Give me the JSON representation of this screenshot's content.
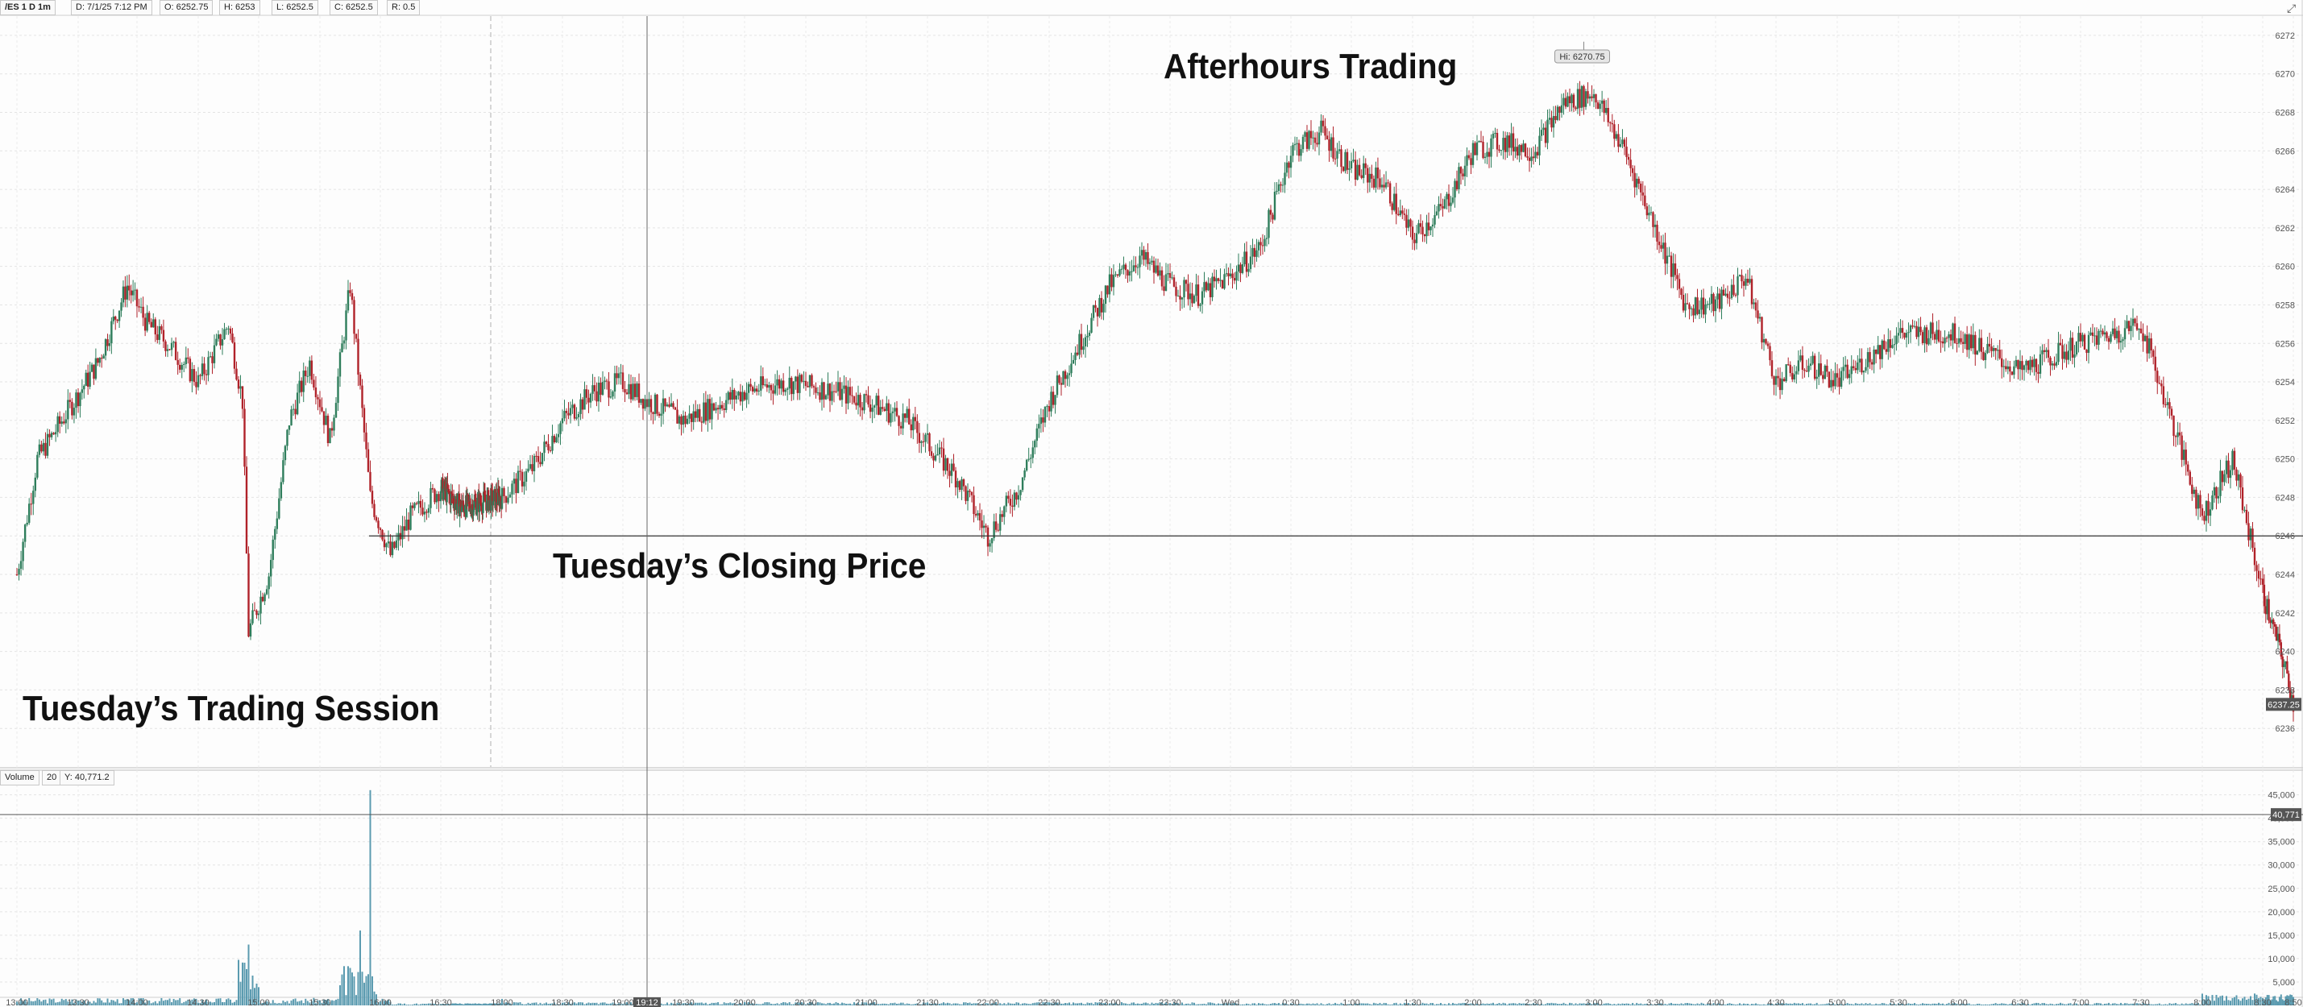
{
  "header": {
    "symbol": "/ES 1 D 1m",
    "date": "D: 7/1/25 7:12 PM",
    "open": "O: 6252.75",
    "high": "H: 6253",
    "low": "L: 6252.5",
    "close": "C: 6252.5",
    "range": "R: 0.5"
  },
  "volume_header": {
    "label": "Volume",
    "period": "20",
    "value": "Y: 40,771.2"
  },
  "annotations": {
    "afterhours": "Afterhours Trading",
    "closing": "Tuesday’s Closing Price",
    "session": "Tuesday’s Trading Session"
  },
  "hi_label": "Hi: 6270.75",
  "last_price_label": "6237.25",
  "volume_marker_label": "40,771",
  "cursor_time_label": "19:12",
  "corner_icon": "chart-expand-icon",
  "colors": {
    "up": "#2e7d5b",
    "down": "#b0222a",
    "volume": "#5b9bb0",
    "grid": "#e4e4e4"
  },
  "chart_data": {
    "type": "candlestick",
    "price_axis": {
      "ylim": [
        6234,
        6273
      ],
      "ticks": [
        6236,
        6238,
        6240,
        6242,
        6244,
        6246,
        6248,
        6250,
        6252,
        6254,
        6256,
        6258,
        6260,
        6262,
        6264,
        6266,
        6268,
        6270,
        6272
      ],
      "reference_line": 6246,
      "last_price": 6237.25,
      "session_high": 6270.75
    },
    "time_axis": {
      "labels": [
        "13:00",
        "13:30",
        "14:00",
        "14:30",
        "15:00",
        "15:30",
        "16:00",
        "16:30",
        "17:00",
        "18:00",
        "18:30",
        "19:00",
        "19:30",
        "20:00",
        "20:30",
        "21:00",
        "21:30",
        "22:00",
        "22:30",
        "23:00",
        "23:30",
        "Wed",
        "0:30",
        "1:00",
        "1:30",
        "2:00",
        "2:30",
        "3:00",
        "3:30",
        "4:00",
        "4:30",
        "5:00",
        "5:30",
        "6:00",
        "6:30",
        "7:00",
        "7:30",
        "8:00",
        "8:30",
        "8:50"
      ]
    },
    "price_path": [
      [
        "13:00",
        6244
      ],
      [
        "13:10",
        6250
      ],
      [
        "13:25",
        6252.5
      ],
      [
        "13:40",
        6255
      ],
      [
        "13:55",
        6259
      ],
      [
        "14:05",
        6257
      ],
      [
        "14:15",
        6256
      ],
      [
        "14:30",
        6254
      ],
      [
        "14:45",
        6257
      ],
      [
        "14:52",
        6253
      ],
      [
        "14:55",
        6241
      ],
      [
        "15:05",
        6244
      ],
      [
        "15:15",
        6252
      ],
      [
        "15:25",
        6255
      ],
      [
        "15:35",
        6251
      ],
      [
        "15:45",
        6259
      ],
      [
        "15:55",
        6248
      ],
      [
        "16:05",
        6245
      ],
      [
        "16:15",
        6247
      ],
      [
        "16:30",
        6248.5
      ],
      [
        "17:00",
        6247.5
      ],
      [
        "18:00",
        6248
      ],
      [
        "18:15",
        6249.5
      ],
      [
        "18:30",
        6252
      ],
      [
        "18:45",
        6253.5
      ],
      [
        "19:00",
        6254
      ],
      [
        "19:12",
        6253
      ],
      [
        "19:30",
        6252
      ],
      [
        "20:00",
        6253.5
      ],
      [
        "20:20",
        6254
      ],
      [
        "20:45",
        6253.5
      ],
      [
        "21:00",
        6253
      ],
      [
        "21:20",
        6252
      ],
      [
        "21:45",
        6249
      ],
      [
        "22:00",
        6246
      ],
      [
        "22:15",
        6248.5
      ],
      [
        "22:30",
        6253
      ],
      [
        "22:45",
        6256
      ],
      [
        "23:00",
        6259
      ],
      [
        "23:15",
        6260.5
      ],
      [
        "23:30",
        6259
      ],
      [
        "23:45",
        6258.5
      ],
      [
        "Wed",
        6259.5
      ],
      [
        "0:15",
        6261
      ],
      [
        "0:30",
        6266
      ],
      [
        "0:45",
        6267
      ],
      [
        "1:00",
        6265
      ],
      [
        "1:15",
        6264.5
      ],
      [
        "1:30",
        6261.5
      ],
      [
        "1:45",
        6263
      ],
      [
        "2:00",
        6266
      ],
      [
        "2:15",
        6266.5
      ],
      [
        "2:30",
        6266
      ],
      [
        "2:45",
        6268.5
      ],
      [
        "3:00",
        6269
      ],
      [
        "3:15",
        6266
      ],
      [
        "3:30",
        6262
      ],
      [
        "3:45",
        6258
      ],
      [
        "4:00",
        6258
      ],
      [
        "4:15",
        6259.5
      ],
      [
        "4:30",
        6254
      ],
      [
        "4:45",
        6255
      ],
      [
        "5:00",
        6254
      ],
      [
        "5:30",
        6256.5
      ],
      [
        "6:00",
        6256.5
      ],
      [
        "6:30",
        6254.5
      ],
      [
        "7:00",
        6256
      ],
      [
        "7:30",
        6257
      ],
      [
        "7:45",
        6252
      ],
      [
        "8:00",
        6247
      ],
      [
        "8:15",
        6250
      ],
      [
        "8:30",
        6243
      ],
      [
        "8:45",
        6239
      ],
      [
        "8:50",
        6237.25
      ]
    ],
    "volume_axis": {
      "ylim": [
        0,
        47000
      ],
      "ticks": [
        5000,
        10000,
        15000,
        20000,
        25000,
        30000,
        35000,
        40000,
        45000
      ],
      "tick_labels": [
        "5,000",
        "10,000",
        "15,000",
        "20,000",
        "25,000",
        "30,000",
        "35,000",
        "40,000",
        "45,000"
      ],
      "marker": 40771
    },
    "volume_spikes": [
      [
        "14:55",
        13000
      ],
      [
        "15:55",
        46000
      ],
      [
        "15:50",
        16000
      ],
      [
        "15:45",
        8000
      ],
      [
        "8:00",
        2500
      ]
    ]
  }
}
